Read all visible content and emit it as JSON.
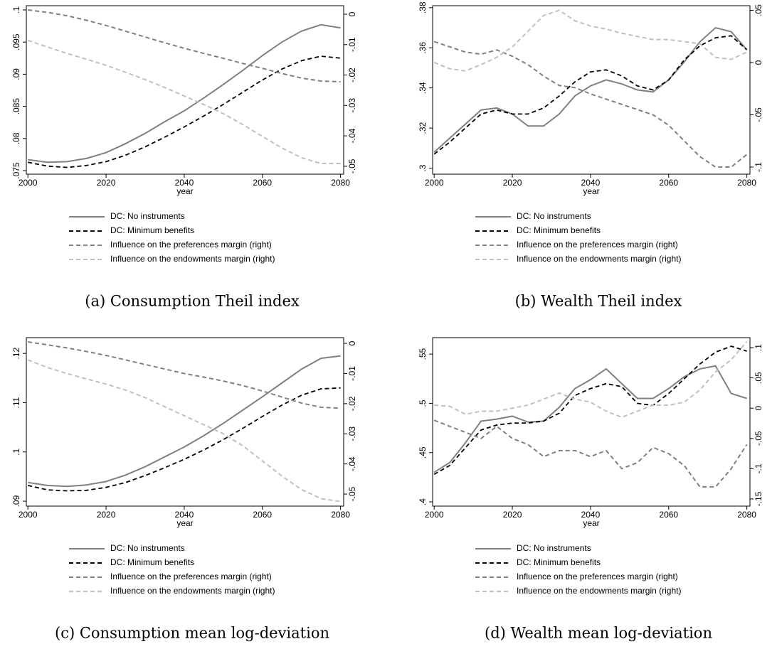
{
  "chart_data": [
    {
      "type": "line",
      "caption": "(a) Consumption Theil index",
      "xlabel": "year",
      "x": [
        2000,
        2005,
        2010,
        2015,
        2020,
        2025,
        2030,
        2035,
        2040,
        2045,
        2050,
        2055,
        2060,
        2065,
        2070,
        2075,
        2080
      ],
      "xlim": [
        1999.6,
        2080.8
      ],
      "xticks": [
        2000,
        2020,
        2040,
        2060,
        2080
      ],
      "ylim": [
        0.07445,
        0.10066
      ],
      "yticks": [
        {
          "value": 0.075,
          "label": ".075"
        },
        {
          "value": 0.08,
          "label": ".08"
        },
        {
          "value": 0.085,
          "label": ".085"
        },
        {
          "value": 0.09,
          "label": ".09"
        },
        {
          "value": 0.095,
          "label": ".095"
        },
        {
          "value": 0.1,
          "label": ".1"
        }
      ],
      "y2lim": [
        -0.0526,
        0.0028
      ],
      "y2ticks": [
        {
          "value": -0.05,
          "label": "-.05"
        },
        {
          "value": -0.04,
          "label": "-.04"
        },
        {
          "value": -0.03,
          "label": "-.03"
        },
        {
          "value": -0.02,
          "label": "-.02"
        },
        {
          "value": -0.01,
          "label": "-.01"
        },
        0
      ],
      "series": [
        {
          "name": "DC: No instruments",
          "color": "#808080",
          "style": "solid",
          "values": [
            0.0767,
            0.0763,
            0.0764,
            0.0769,
            0.0778,
            0.0792,
            0.0808,
            0.0826,
            0.0843,
            0.0863,
            0.0884,
            0.0906,
            0.0929,
            0.095,
            0.0967,
            0.0977,
            0.0972
          ]
        },
        {
          "name": "DC: Minimum benefits",
          "color": "#000000",
          "style": "dashed",
          "values": [
            0.0763,
            0.0757,
            0.0755,
            0.0758,
            0.0764,
            0.0774,
            0.0787,
            0.0802,
            0.0818,
            0.0835,
            0.0853,
            0.0872,
            0.0891,
            0.0908,
            0.0921,
            0.0928,
            0.0925
          ]
        },
        {
          "name": "Influence on the preferences margin (right)",
          "color": "#808080",
          "style": "dashed",
          "axis": "y2",
          "values": [
            0.0014,
            0.0006,
            -0.0005,
            -0.002,
            -0.0037,
            -0.0056,
            -0.0075,
            -0.0094,
            -0.0112,
            -0.0129,
            -0.0145,
            -0.0162,
            -0.0178,
            -0.0195,
            -0.021,
            -0.022,
            -0.0222
          ]
        },
        {
          "name": "Influence on the endowments margin (right)",
          "color": "#c0c0c0",
          "style": "dashed",
          "axis": "y2",
          "values": [
            -0.0086,
            -0.0108,
            -0.0129,
            -0.0148,
            -0.0168,
            -0.0191,
            -0.0215,
            -0.0241,
            -0.0269,
            -0.0297,
            -0.0327,
            -0.0363,
            -0.0402,
            -0.044,
            -0.0472,
            -0.0491,
            -0.0491
          ]
        }
      ]
    },
    {
      "type": "line",
      "caption": "(b) Wealth Theil index",
      "xlabel": "year",
      "x": [
        2000,
        2004,
        2008,
        2012,
        2016,
        2020,
        2024,
        2028,
        2032,
        2036,
        2040,
        2044,
        2048,
        2052,
        2056,
        2060,
        2064,
        2068,
        2072,
        2076,
        2080
      ],
      "xlim": [
        1999.6,
        2080.8
      ],
      "xticks": [
        2000,
        2020,
        2040,
        2060,
        2080
      ],
      "ylim": [
        0.297,
        0.381
      ],
      "yticks": [
        {
          "value": 0.3,
          "label": ".3"
        },
        {
          "value": 0.32,
          "label": ".32"
        },
        {
          "value": 0.34,
          "label": ".34"
        },
        {
          "value": 0.36,
          "label": ".36"
        },
        {
          "value": 0.38,
          "label": ".38"
        }
      ],
      "y2lim": [
        -0.1068,
        0.0544
      ],
      "y2ticks": [
        {
          "value": -0.1,
          "label": "-.1"
        },
        {
          "value": -0.05,
          "label": "-.05"
        },
        0,
        {
          "value": 0.05,
          "label": ".05"
        }
      ],
      "series": [
        {
          "name": "DC: No instruments",
          "color": "#808080",
          "style": "solid",
          "values": [
            0.308,
            0.315,
            0.322,
            0.329,
            0.33,
            0.327,
            0.321,
            0.321,
            0.327,
            0.336,
            0.341,
            0.344,
            0.342,
            0.339,
            0.338,
            0.344,
            0.353,
            0.363,
            0.37,
            0.368,
            0.359
          ]
        },
        {
          "name": "DC: Minimum benefits",
          "color": "#000000",
          "style": "dashed",
          "values": [
            0.307,
            0.313,
            0.32,
            0.327,
            0.329,
            0.327,
            0.327,
            0.33,
            0.336,
            0.343,
            0.348,
            0.349,
            0.346,
            0.341,
            0.339,
            0.344,
            0.354,
            0.361,
            0.365,
            0.366,
            0.359
          ]
        },
        {
          "name": "Influence on the preferences margin (right)",
          "color": "#808080",
          "style": "dashed",
          "axis": "y2",
          "values": [
            0.02,
            0.015,
            0.01,
            0.008,
            0.012,
            0.006,
            -0.002,
            -0.013,
            -0.022,
            -0.024,
            -0.03,
            -0.035,
            -0.04,
            -0.045,
            -0.05,
            -0.06,
            -0.075,
            -0.09,
            -0.1,
            -0.1,
            -0.088
          ]
        },
        {
          "name": "Influence on the endowments margin (right)",
          "color": "#c0c0c0",
          "style": "dashed",
          "axis": "y2",
          "values": [
            0.0,
            -0.006,
            -0.008,
            -0.002,
            0.005,
            0.015,
            0.03,
            0.045,
            0.05,
            0.04,
            0.035,
            0.032,
            0.028,
            0.025,
            0.022,
            0.022,
            0.02,
            0.018,
            0.005,
            0.003,
            0.01
          ]
        }
      ]
    },
    {
      "type": "line",
      "caption": "(c) Consumption mean log-deviation",
      "xlabel": "year",
      "x": [
        2000,
        2005,
        2010,
        2015,
        2020,
        2025,
        2030,
        2035,
        2040,
        2045,
        2050,
        2055,
        2060,
        2065,
        2070,
        2075,
        2080
      ],
      "xlim": [
        1999.6,
        2080.8
      ],
      "xticks": [
        2000,
        2020,
        2040,
        2060,
        2080
      ],
      "ylim": [
        0.089,
        0.1232
      ],
      "yticks": [
        {
          "value": 0.09,
          "label": ".09"
        },
        {
          "value": 0.1,
          "label": ".1"
        },
        {
          "value": 0.11,
          "label": ".11"
        },
        {
          "value": 0.12,
          "label": ".12"
        }
      ],
      "y2lim": [
        -0.054,
        0.0019
      ],
      "y2ticks": [
        {
          "value": -0.05,
          "label": "-.05"
        },
        {
          "value": -0.04,
          "label": "-.04"
        },
        {
          "value": -0.03,
          "label": "-.03"
        },
        {
          "value": -0.02,
          "label": "-.02"
        },
        {
          "value": -0.01,
          "label": "-.01"
        },
        0
      ],
      "series": [
        {
          "name": "DC: No instruments",
          "color": "#808080",
          "style": "solid",
          "values": [
            0.0938,
            0.0932,
            0.093,
            0.0933,
            0.094,
            0.0953,
            0.097,
            0.099,
            0.101,
            0.1033,
            0.1058,
            0.1085,
            0.1112,
            0.114,
            0.1168,
            0.119,
            0.1195
          ]
        },
        {
          "name": "DC: Minimum benefits",
          "color": "#000000",
          "style": "dashed",
          "values": [
            0.0932,
            0.0923,
            0.0921,
            0.0922,
            0.0928,
            0.0938,
            0.0952,
            0.0968,
            0.0985,
            0.1004,
            0.1025,
            0.1048,
            0.1072,
            0.1095,
            0.1115,
            0.1128,
            0.113
          ]
        },
        {
          "name": "Influence on the preferences margin (right)",
          "color": "#808080",
          "style": "dashed",
          "axis": "y2",
          "values": [
            0.0005,
            -0.0005,
            -0.0015,
            -0.0027,
            -0.004,
            -0.0055,
            -0.007,
            -0.0085,
            -0.01,
            -0.0112,
            -0.0125,
            -0.014,
            -0.0158,
            -0.0178,
            -0.0198,
            -0.0212,
            -0.0215
          ]
        },
        {
          "name": "Influence on the endowments margin (right)",
          "color": "#c0c0c0",
          "style": "dashed",
          "axis": "y2",
          "values": [
            -0.0055,
            -0.008,
            -0.01,
            -0.0118,
            -0.0135,
            -0.0155,
            -0.018,
            -0.021,
            -0.024,
            -0.027,
            -0.03,
            -0.034,
            -0.039,
            -0.044,
            -0.0485,
            -0.0515,
            -0.0525
          ]
        }
      ]
    },
    {
      "type": "line",
      "caption": "(d) Wealth mean log-deviation",
      "xlabel": "year",
      "x": [
        2000,
        2004,
        2008,
        2012,
        2016,
        2020,
        2024,
        2028,
        2032,
        2036,
        2040,
        2044,
        2048,
        2052,
        2056,
        2060,
        2064,
        2068,
        2072,
        2076,
        2080
      ],
      "xlim": [
        1999.6,
        2080.8
      ],
      "xticks": [
        2000,
        2020,
        2040,
        2060,
        2080
      ],
      "ylim": [
        0.3957,
        0.5667
      ],
      "yticks": [
        {
          "value": 0.4,
          "label": ".4"
        },
        {
          "value": 0.45,
          "label": ".45"
        },
        {
          "value": 0.5,
          "label": ".5"
        },
        {
          "value": 0.55,
          "label": ".55"
        }
      ],
      "y2lim": [
        -0.1618,
        0.1165
      ],
      "y2ticks": [
        {
          "value": -0.15,
          "label": "-.15"
        },
        {
          "value": -0.1,
          "label": "-.1"
        },
        {
          "value": -0.05,
          "label": "-.05"
        },
        0,
        {
          "value": 0.05,
          "label": ".05"
        },
        {
          "value": 0.1,
          "label": ".1"
        }
      ],
      "series": [
        {
          "name": "DC: No instruments",
          "color": "#808080",
          "style": "solid",
          "values": [
            0.43,
            0.44,
            0.46,
            0.482,
            0.484,
            0.487,
            0.481,
            0.482,
            0.496,
            0.515,
            0.524,
            0.535,
            0.52,
            0.505,
            0.505,
            0.515,
            0.527,
            0.535,
            0.538,
            0.51,
            0.505
          ]
        },
        {
          "name": "DC: Minimum benefits",
          "color": "#000000",
          "style": "dashed",
          "values": [
            0.428,
            0.437,
            0.455,
            0.473,
            0.478,
            0.48,
            0.48,
            0.482,
            0.49,
            0.508,
            0.515,
            0.52,
            0.517,
            0.5,
            0.498,
            0.51,
            0.525,
            0.54,
            0.552,
            0.558,
            0.553
          ]
        },
        {
          "name": "Influence on the preferences margin (right)",
          "color": "#808080",
          "style": "dashed",
          "axis": "y2",
          "values": [
            -0.02,
            -0.03,
            -0.04,
            -0.05,
            -0.03,
            -0.05,
            -0.06,
            -0.08,
            -0.07,
            -0.07,
            -0.08,
            -0.07,
            -0.1,
            -0.09,
            -0.065,
            -0.075,
            -0.095,
            -0.13,
            -0.13,
            -0.1,
            -0.06
          ]
        },
        {
          "name": "Influence on the endowments margin (right)",
          "color": "#c0c0c0",
          "style": "dashed",
          "axis": "y2",
          "values": [
            0.005,
            0.003,
            -0.01,
            -0.005,
            -0.005,
            0.0,
            0.005,
            0.015,
            0.025,
            0.015,
            0.01,
            -0.005,
            -0.015,
            -0.005,
            0.005,
            0.005,
            0.01,
            0.03,
            0.06,
            0.08,
            0.11
          ]
        }
      ]
    }
  ]
}
